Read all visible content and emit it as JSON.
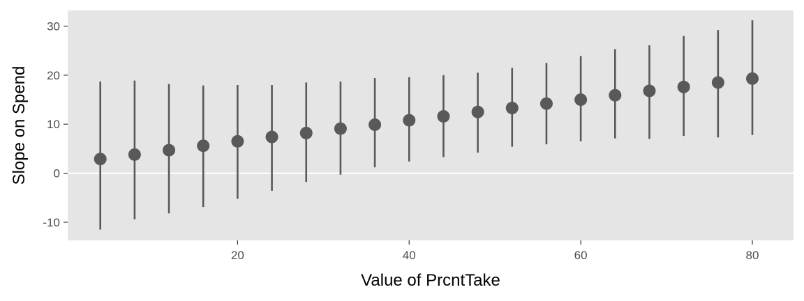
{
  "chart_data": {
    "type": "scatter",
    "title": "",
    "xlabel": "Value of PrcntTake",
    "ylabel": "Slope on Spend",
    "xlim": [
      0.2,
      84.8
    ],
    "ylim": [
      -13.7,
      33.2
    ],
    "x_ticks": [
      20,
      40,
      60,
      80
    ],
    "x_tick_labels": [
      "20",
      "40",
      "60",
      "80"
    ],
    "y_ticks": [
      -10,
      0,
      10,
      20,
      30
    ],
    "y_tick_labels": [
      "-10",
      "0",
      "10",
      "20",
      "30"
    ],
    "reference_line": 0,
    "grid": false,
    "panel_background": "#E5E5E5",
    "line_color": "#595959",
    "point_color": "#595959",
    "reference_line_color": "#FFFFFF",
    "points": [
      {
        "x": 4,
        "y": 2.9,
        "lower": -11.5,
        "upper": 18.7
      },
      {
        "x": 8,
        "y": 3.8,
        "lower": -9.4,
        "upper": 18.9
      },
      {
        "x": 12,
        "y": 4.7,
        "lower": -8.2,
        "upper": 18.2
      },
      {
        "x": 16,
        "y": 5.6,
        "lower": -6.9,
        "upper": 17.9
      },
      {
        "x": 20,
        "y": 6.5,
        "lower": -5.2,
        "upper": 18.0
      },
      {
        "x": 24,
        "y": 7.4,
        "lower": -3.6,
        "upper": 18.0
      },
      {
        "x": 28,
        "y": 8.2,
        "lower": -1.8,
        "upper": 18.5
      },
      {
        "x": 32,
        "y": 9.1,
        "lower": -0.3,
        "upper": 18.7
      },
      {
        "x": 36,
        "y": 9.9,
        "lower": 1.2,
        "upper": 19.4
      },
      {
        "x": 40,
        "y": 10.8,
        "lower": 2.4,
        "upper": 19.6
      },
      {
        "x": 44,
        "y": 11.6,
        "lower": 3.3,
        "upper": 20.0
      },
      {
        "x": 48,
        "y": 12.5,
        "lower": 4.2,
        "upper": 20.5
      },
      {
        "x": 52,
        "y": 13.3,
        "lower": 5.4,
        "upper": 21.5
      },
      {
        "x": 56,
        "y": 14.2,
        "lower": 5.9,
        "upper": 22.5
      },
      {
        "x": 60,
        "y": 15.0,
        "lower": 6.5,
        "upper": 23.9
      },
      {
        "x": 64,
        "y": 15.9,
        "lower": 7.1,
        "upper": 25.3
      },
      {
        "x": 68,
        "y": 16.8,
        "lower": 7.0,
        "upper": 26.1
      },
      {
        "x": 72,
        "y": 17.6,
        "lower": 7.6,
        "upper": 28.0
      },
      {
        "x": 76,
        "y": 18.5,
        "lower": 7.3,
        "upper": 29.2
      },
      {
        "x": 80,
        "y": 19.3,
        "lower": 7.8,
        "upper": 31.2
      }
    ]
  }
}
